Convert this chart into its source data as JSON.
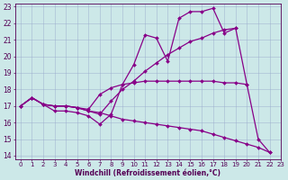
{
  "xlabel": "Windchill (Refroidissement éolien,°C)",
  "xlim": [
    -0.5,
    23
  ],
  "ylim": [
    13.8,
    23.2
  ],
  "yticks": [
    14,
    15,
    16,
    17,
    18,
    19,
    20,
    21,
    22,
    23
  ],
  "xticks": [
    0,
    1,
    2,
    3,
    4,
    5,
    6,
    7,
    8,
    9,
    10,
    11,
    12,
    13,
    14,
    15,
    16,
    17,
    18,
    19,
    20,
    21,
    22,
    23
  ],
  "bg_color": "#cce8e8",
  "line_color": "#880088",
  "grid_color": "#99aacc",
  "lines": [
    {
      "x": [
        0,
        1,
        2,
        3,
        4,
        5,
        6,
        7,
        8,
        9,
        10,
        11,
        12,
        13,
        14,
        15,
        16,
        17,
        18,
        19,
        20,
        21,
        22
      ],
      "y": [
        17.0,
        17.5,
        17.1,
        16.7,
        16.7,
        16.6,
        16.4,
        15.9,
        16.5,
        18.3,
        19.5,
        21.3,
        21.1,
        19.7,
        22.3,
        22.7,
        22.7,
        22.9,
        21.4,
        21.7,
        18.3,
        15.0,
        14.2
      ]
    },
    {
      "x": [
        0,
        1,
        2,
        3,
        4,
        5,
        6,
        7,
        8,
        9,
        10,
        11,
        12,
        13,
        14,
        15,
        16,
        17,
        18,
        19,
        20
      ],
      "y": [
        17.0,
        17.5,
        17.1,
        17.0,
        17.0,
        16.9,
        16.8,
        17.7,
        18.1,
        18.3,
        18.4,
        18.5,
        18.5,
        18.5,
        18.5,
        18.5,
        18.5,
        18.5,
        18.4,
        18.4,
        18.3
      ]
    },
    {
      "x": [
        0,
        1,
        2,
        3,
        4,
        5,
        6,
        7,
        8,
        9,
        10,
        11,
        12,
        13,
        14,
        15,
        16,
        17,
        18,
        19
      ],
      "y": [
        17.0,
        17.5,
        17.1,
        17.0,
        17.0,
        16.9,
        16.7,
        16.5,
        17.3,
        18.0,
        18.5,
        19.1,
        19.6,
        20.1,
        20.5,
        20.9,
        21.1,
        21.4,
        21.6,
        21.7
      ]
    },
    {
      "x": [
        0,
        1,
        2,
        3,
        4,
        5,
        6,
        7,
        8,
        9,
        10,
        11,
        12,
        13,
        14,
        15,
        16,
        17,
        18,
        19,
        20,
        21,
        22
      ],
      "y": [
        17.0,
        17.5,
        17.1,
        17.0,
        17.0,
        16.9,
        16.7,
        16.6,
        16.4,
        16.2,
        16.1,
        16.0,
        15.9,
        15.8,
        15.7,
        15.6,
        15.5,
        15.3,
        15.1,
        14.9,
        14.7,
        14.5,
        14.2
      ]
    }
  ]
}
